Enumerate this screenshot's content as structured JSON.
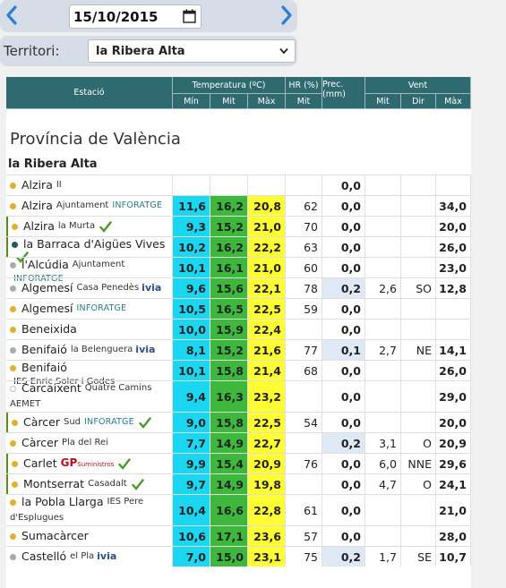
{
  "date": {
    "value": "15/10/2015"
  },
  "territory": {
    "label": "Territori:",
    "selected": "la Ribera Alta"
  },
  "table": {
    "headers": {
      "station": "Estació",
      "temperature": "Temperatura (ºC)",
      "humidity": "HR (%)",
      "precip": "Prec. (mm)",
      "wind": "Vent",
      "min": "Mín",
      "mid": "Mit",
      "max": "Màx",
      "hr_mid": "Mit",
      "w_mid": "Mit",
      "w_dir": "Dir",
      "w_max": "Màx"
    }
  },
  "province": "Província de València",
  "region": "la Ribera Alta",
  "colors": {
    "header_bg": "#2e6a6f",
    "tmin_cyan": "#1ad6f0",
    "tmid_green": "#3db83c",
    "tmax_yellow": "#ffff33",
    "precip_blue": "#dfe9f5",
    "dot_gold": "#e2b030",
    "dot_gray": "#aaaaaa",
    "dot_teal": "#1f5c5c"
  },
  "rows": [
    {
      "name": "Alzira",
      "sub": "II",
      "tag": "",
      "check": false,
      "dot": "gold",
      "tmin": "",
      "tmid": "",
      "tmax": "",
      "hr": "",
      "prec": "0,0",
      "wmid": "",
      "wdir": "",
      "wmax": ""
    },
    {
      "name": "Alzira",
      "sub": "Ajuntament",
      "tag": "INFORATGE",
      "check": false,
      "dot": "gold",
      "tmin": "11,6",
      "tmid": "16,2",
      "tmax": "20,8",
      "hr": "62",
      "prec": "0,0",
      "wmid": "",
      "wdir": "",
      "wmax": "34,0"
    },
    {
      "name": "Alzira",
      "sub": "la Murta",
      "tag": "",
      "check": true,
      "dot": "gold",
      "tmin": "9,3",
      "tmid": "15,2",
      "tmax": "21,0",
      "hr": "70",
      "prec": "0,0",
      "wmid": "",
      "wdir": "",
      "wmax": "20,0"
    },
    {
      "name": "la Barraca d'Aigües Vives",
      "sub": "",
      "tag": "",
      "check": true,
      "dot": "teal",
      "tmin": "10,2",
      "tmid": "16,2",
      "tmax": "22,2",
      "hr": "63",
      "prec": "0,0",
      "wmid": "",
      "wdir": "",
      "wmax": "26,0"
    },
    {
      "name": "l'Alcúdia",
      "sub": "Ajuntament",
      "tag": "INFORATGE",
      "check": false,
      "dot": "gray",
      "tmin": "10,1",
      "tmid": "16,1",
      "tmax": "21,0",
      "hr": "60",
      "prec": "0,0",
      "wmid": "",
      "wdir": "",
      "wmax": "23,0"
    },
    {
      "name": "Algemesí",
      "sub": "Casa Penedès",
      "tag": "ivia",
      "check": false,
      "dot": "gray",
      "tmin": "9,6",
      "tmid": "15,6",
      "tmax": "22,1",
      "hr": "78",
      "prec": "0,2",
      "wmid": "2,6",
      "wdir": "SO",
      "wmax": "12,8"
    },
    {
      "name": "Algemesí",
      "sub": "",
      "tag": "INFORATGE",
      "check": false,
      "dot": "gold",
      "tmin": "10,5",
      "tmid": "16,5",
      "tmax": "22,5",
      "hr": "59",
      "prec": "0,0",
      "wmid": "",
      "wdir": "",
      "wmax": ""
    },
    {
      "name": "Beneixida",
      "sub": "",
      "tag": "",
      "check": false,
      "dot": "gold",
      "tmin": "10,0",
      "tmid": "15,9",
      "tmax": "22,4",
      "hr": "",
      "prec": "0,0",
      "wmid": "",
      "wdir": "",
      "wmax": ""
    },
    {
      "name": "Benifaió",
      "sub": "la Belenguera",
      "tag": "ivia",
      "check": false,
      "dot": "gray",
      "tmin": "8,1",
      "tmid": "15,2",
      "tmax": "21,6",
      "hr": "77",
      "prec": "0,1",
      "wmid": "2,7",
      "wdir": "NE",
      "wmax": "14,1"
    },
    {
      "name": "Benifaió",
      "sub": "IES Enric Soler i Godes",
      "tag": "",
      "check": false,
      "dot": "gold",
      "tmin": "10,1",
      "tmid": "15,8",
      "tmax": "21,4",
      "hr": "68",
      "prec": "0,0",
      "wmid": "",
      "wdir": "",
      "wmax": "26,0"
    },
    {
      "name": "Carcaixent",
      "sub": "Quatre Camins",
      "sub2": "AEMET",
      "tag": "",
      "check": false,
      "dot": "white",
      "tmin": "9,4",
      "tmid": "16,3",
      "tmax": "23,2",
      "hr": "",
      "prec": "0,0",
      "wmid": "",
      "wdir": "",
      "wmax": "29,0"
    },
    {
      "name": "Càrcer",
      "sub": "Sud",
      "tag": "INFORATGE",
      "check": true,
      "dot": "gold",
      "tmin": "9,0",
      "tmid": "15,8",
      "tmax": "22,5",
      "hr": "54",
      "prec": "0,0",
      "wmid": "",
      "wdir": "",
      "wmax": "20,0"
    },
    {
      "name": "Càrcer",
      "sub": "Pla del Rei",
      "tag": "",
      "check": false,
      "dot": "gold",
      "tmin": "7,7",
      "tmid": "14,9",
      "tmax": "22,7",
      "hr": "",
      "prec": "0,2",
      "wmid": "3,1",
      "wdir": "O",
      "wmax": "20,9"
    },
    {
      "name": "Carlet",
      "sub": "",
      "tag": "GP",
      "tag2": "Suministros",
      "check": true,
      "dot": "gold",
      "tmin": "9,9",
      "tmid": "15,4",
      "tmax": "20,9",
      "hr": "76",
      "prec": "0,0",
      "wmid": "6,0",
      "wdir": "NNE",
      "wmax": "29,6"
    },
    {
      "name": "Montserrat",
      "sub": "Casadalt",
      "tag": "",
      "check": true,
      "dot": "gold",
      "tmin": "9,7",
      "tmid": "14,9",
      "tmax": "19,8",
      "hr": "",
      "prec": "0,0",
      "wmid": "4,7",
      "wdir": "O",
      "wmax": "24,1"
    },
    {
      "name": "la Pobla Llarga",
      "sub": "IES Pere",
      "sub2": "d'Esplugues",
      "tag": "",
      "check": false,
      "dot": "gold",
      "tmin": "10,4",
      "tmid": "16,6",
      "tmax": "22,8",
      "hr": "61",
      "prec": "0,0",
      "wmid": "",
      "wdir": "",
      "wmax": "21,0"
    },
    {
      "name": "Sumacàrcer",
      "sub": "",
      "tag": "",
      "check": false,
      "dot": "gold",
      "tmin": "10,6",
      "tmid": "17,1",
      "tmax": "23,6",
      "hr": "57",
      "prec": "0,0",
      "wmid": "",
      "wdir": "",
      "wmax": "28,0"
    },
    {
      "name": "Castelló",
      "sub": "el Pla",
      "tag": "ivia",
      "check": false,
      "dot": "gray",
      "tmin": "7,0",
      "tmid": "15,0",
      "tmax": "23,1",
      "hr": "75",
      "prec": "0,2",
      "wmid": "1,7",
      "wdir": "SE",
      "wmax": "10,7"
    }
  ]
}
